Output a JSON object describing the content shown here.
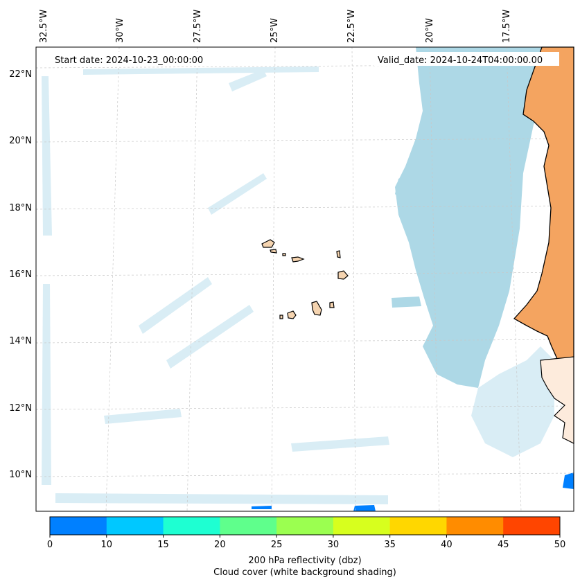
{
  "map": {
    "start_date_label": "Start date: 2024-10-23_00:00:00",
    "valid_date_label": "Valid_date: 2024-10-24T04:00:00.00",
    "longitude_labels": [
      "32.5°W",
      "30°W",
      "27.5°W",
      "25°W",
      "22.5°W",
      "20°W",
      "17.5°W"
    ],
    "latitude_labels": [
      "22°N",
      "20°N",
      "18°N",
      "16°N",
      "14°N",
      "12°N",
      "10°N"
    ],
    "extent": {
      "lon_min": -32.6,
      "lon_max": -15.6,
      "lat_min": 8.9,
      "lat_max": 22.8
    },
    "colors": {
      "land": "#f4a460",
      "island": "#f5d4b0",
      "cloud": "#add8e6",
      "ocean": "#ffffff"
    }
  },
  "colorbar": {
    "ticks": [
      "0",
      "10",
      "15",
      "20",
      "25",
      "30",
      "35",
      "40",
      "45",
      "50"
    ],
    "colors": [
      "#0080ff",
      "#00c8ff",
      "#1effd2",
      "#5fff8c",
      "#9bff50",
      "#d7ff1e",
      "#ffd700",
      "#ff8c00",
      "#ff4500"
    ],
    "label_line1": "200 hPa reflectivity (dbz)",
    "label_line2": "Cloud cover (white background shading)"
  }
}
